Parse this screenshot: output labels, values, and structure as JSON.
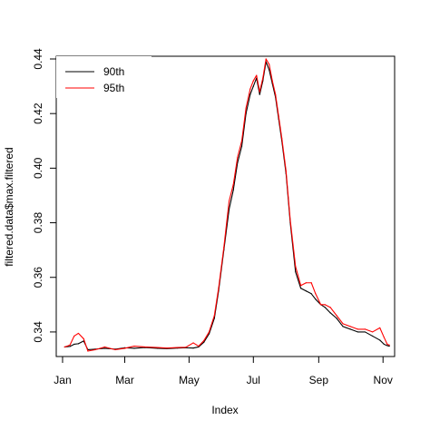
{
  "chart_data": {
    "type": "line",
    "xlabel": "Index",
    "ylabel": "filtered.data$max.filtered",
    "x_ticks": [
      "Jan",
      "Mar",
      "May",
      "Jul",
      "Sep",
      "Nov"
    ],
    "y_ticks": [
      "0.34",
      "0.36",
      "0.38",
      "0.40",
      "0.42",
      "0.44"
    ],
    "y_tick_values": [
      0.34,
      0.36,
      0.38,
      0.4,
      0.42,
      0.44
    ],
    "xlim": [
      "Dec 26",
      "Nov 12"
    ],
    "ylim": [
      0.331,
      0.441
    ],
    "grid": false,
    "legend_position": "top-left",
    "x": [
      "Jan 3",
      "Jan 8",
      "Jan 12",
      "Jan 16",
      "Jan 21",
      "Jan 25",
      "Feb 1",
      "Feb 10",
      "Feb 20",
      "Mar 1",
      "Mar 10",
      "Mar 20",
      "Apr 1",
      "Apr 10",
      "Apr 20",
      "Apr 28",
      "May 5",
      "May 10",
      "May 15",
      "May 20",
      "May 25",
      "May 29",
      "Jun 3",
      "Jun 8",
      "Jun 12",
      "Jun 16",
      "Jun 20",
      "Jun 24",
      "Jun 28",
      "Jul 1",
      "Jul 4",
      "Jul 7",
      "Jul 10",
      "Jul 13",
      "Jul 16",
      "Jul 19",
      "Jul 22",
      "Jul 25",
      "Jul 28",
      "Aug 1",
      "Aug 5",
      "Aug 10",
      "Aug 15",
      "Aug 20",
      "Aug 25",
      "Aug 29",
      "Sep 3",
      "Sep 7",
      "Sep 12",
      "Sep 18",
      "Sep 24",
      "Oct 1",
      "Oct 8",
      "Oct 15",
      "Oct 22",
      "Oct 29",
      "Nov 2",
      "Nov 5",
      "Nov 7"
    ],
    "series": [
      {
        "name": "90th",
        "color": "#000000",
        "values": [
          0.3345,
          0.3347,
          0.3355,
          0.3357,
          0.3367,
          0.3335,
          0.3337,
          0.334,
          0.3337,
          0.3342,
          0.334,
          0.3343,
          0.334,
          0.3339,
          0.3341,
          0.3342,
          0.3341,
          0.3345,
          0.3362,
          0.3393,
          0.345,
          0.355,
          0.37,
          0.385,
          0.392,
          0.402,
          0.408,
          0.42,
          0.427,
          0.43,
          0.433,
          0.427,
          0.432,
          0.439,
          0.436,
          0.431,
          0.426,
          0.418,
          0.41,
          0.398,
          0.38,
          0.362,
          0.356,
          0.355,
          0.354,
          0.352,
          0.35,
          0.349,
          0.347,
          0.345,
          0.342,
          0.341,
          0.34,
          0.34,
          0.3385,
          0.337,
          0.3355,
          0.335,
          0.3348
        ]
      },
      {
        "name": "95th",
        "color": "#ff0000",
        "values": [
          0.3345,
          0.3352,
          0.3385,
          0.3395,
          0.3375,
          0.333,
          0.3335,
          0.3345,
          0.3335,
          0.334,
          0.3348,
          0.3345,
          0.3343,
          0.3341,
          0.3343,
          0.3344,
          0.336,
          0.3348,
          0.3368,
          0.34,
          0.346,
          0.356,
          0.371,
          0.388,
          0.394,
          0.404,
          0.41,
          0.422,
          0.429,
          0.432,
          0.434,
          0.428,
          0.433,
          0.44,
          0.438,
          0.432,
          0.427,
          0.419,
          0.411,
          0.399,
          0.381,
          0.364,
          0.357,
          0.358,
          0.358,
          0.354,
          0.35,
          0.35,
          0.349,
          0.346,
          0.343,
          0.342,
          0.341,
          0.341,
          0.34,
          0.3415,
          0.338,
          0.3355,
          0.3352
        ]
      }
    ]
  }
}
